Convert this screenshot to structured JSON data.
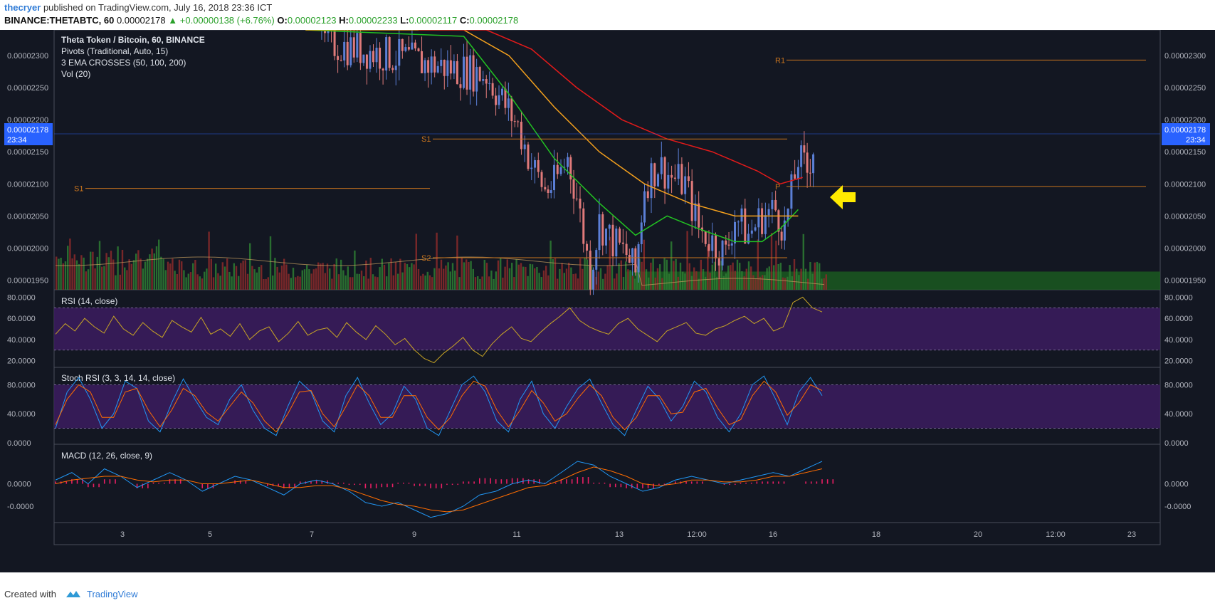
{
  "header": {
    "author": "thecryer",
    "published": "published on TradingView.com, July 16, 2018 23:36 ICT",
    "symbol_line": "BINANCE:THETABTC, 60",
    "last": "0.00002178",
    "change": "+0.00000138 (+6.76%)",
    "o_label": "O:",
    "o": "0.00002123",
    "h_label": "H:",
    "h": "0.00002233",
    "l_label": "L:",
    "l": "0.00002117",
    "c_label": "C:",
    "c": "0.00002178"
  },
  "legend": {
    "title": "Theta Token / Bitcoin, 60, BINANCE",
    "pivots": "Pivots (Traditional, Auto, 15)",
    "ema": "3 EMA CROSSES (50, 100, 200)",
    "vol": "Vol (20)"
  },
  "panes": {
    "rsi_label": "RSI (14, close)",
    "stoch_label": "Stoch RSI (3, 3, 14, 14, close)",
    "macd_label": "MACD (12, 26, close, 9)"
  },
  "price_badge": {
    "value": "0.00002178",
    "time": "23:34"
  },
  "footer": {
    "created": "Created with",
    "brand": "TradingView"
  },
  "colors": {
    "background": "#131722",
    "ema50": "#22c322",
    "ema100": "#f5a11d",
    "ema200": "#e31a1a",
    "pivot": "#c8741e",
    "rsi": "#c9a625",
    "band": "#3a1c5c",
    "macd": "#2196f3",
    "signal": "#ff6d00",
    "hist": "#e91e63",
    "arrow": "#ffeb00"
  },
  "chart_data": [
    {
      "type": "candlestick",
      "title": "Theta Token / Bitcoin, 60, BINANCE",
      "y_ticks": [
        "0.00002300",
        "0.00002250",
        "0.00002200",
        "0.00002150",
        "0.00002100",
        "0.00002050",
        "0.00002000",
        "0.00001950"
      ],
      "x_ticks": [
        "3",
        "5",
        "7",
        "9",
        "11",
        "13",
        "12:00",
        "16",
        "18",
        "20",
        "12:00",
        "23"
      ],
      "ylim": [
        1.935e-05,
        2.34e-05
      ],
      "pivot_levels": [
        {
          "label": "R1",
          "value": 2.293e-05
        },
        {
          "label": "S1",
          "value": 2.17e-05
        },
        {
          "label": "P",
          "value": 2.096e-05
        },
        {
          "label": "S2",
          "value": 1.985e-05
        },
        {
          "label": "S1",
          "value": 2.093e-05
        }
      ],
      "close_path": [
        [
          0,
          2.34e-05
        ],
        [
          6,
          2.32e-05
        ],
        [
          8,
          2.29e-05
        ],
        [
          9.5,
          2.27e-05
        ],
        [
          10.2,
          2.19e-05
        ],
        [
          10.5,
          2.13e-05
        ],
        [
          10.8,
          2.09e-05
        ],
        [
          11,
          2.1e-05
        ],
        [
          11.3,
          2.14e-05
        ],
        [
          11.5,
          2.08e-05
        ],
        [
          11.8,
          1.96e-05
        ],
        [
          12,
          2.04e-05
        ],
        [
          12.3,
          2.01e-05
        ],
        [
          12.6,
          1.99e-05
        ],
        [
          12.8,
          1.96e-05
        ],
        [
          13,
          2.1e-05
        ],
        [
          13.3,
          2.13e-05
        ],
        [
          13.6,
          2.11e-05
        ],
        [
          13.9,
          2.1e-05
        ],
        [
          14.2,
          2.03e-05
        ],
        [
          14.5,
          2.01e-05
        ],
        [
          14.8,
          1.99e-05
        ],
        [
          15,
          2.05e-05
        ],
        [
          15.3,
          2.02e-05
        ],
        [
          15.6,
          2.05e-05
        ],
        [
          15.9,
          2.06e-05
        ],
        [
          16.1,
          2.03e-05
        ],
        [
          16.4,
          2.14e-05
        ],
        [
          16.6,
          2.12e-05
        ],
        [
          16.8,
          2.178e-05
        ]
      ],
      "ema50": [
        [
          5.5,
          2.38e-05
        ],
        [
          9,
          2.33e-05
        ],
        [
          10,
          2.24e-05
        ],
        [
          11,
          2.14e-05
        ],
        [
          12,
          2.07e-05
        ],
        [
          12.8,
          2.02e-05
        ],
        [
          13.5,
          2.05e-05
        ],
        [
          14.2,
          2.03e-05
        ],
        [
          15,
          2.01e-05
        ],
        [
          15.6,
          2.01e-05
        ],
        [
          16,
          2.03e-05
        ],
        [
          16.4,
          2.06e-05
        ]
      ],
      "ema100": [
        [
          5.5,
          2.4e-05
        ],
        [
          9,
          2.36e-05
        ],
        [
          10,
          2.3e-05
        ],
        [
          11,
          2.22e-05
        ],
        [
          12,
          2.15e-05
        ],
        [
          13,
          2.1e-05
        ],
        [
          14,
          2.07e-05
        ],
        [
          15,
          2.05e-05
        ],
        [
          16,
          2.05e-05
        ],
        [
          16.4,
          2.05e-05
        ]
      ],
      "ema200": [
        [
          8,
          2.4e-05
        ],
        [
          9.5,
          2.36e-05
        ],
        [
          10.5,
          2.31e-05
        ],
        [
          11.5,
          2.25e-05
        ],
        [
          12.5,
          2.2e-05
        ],
        [
          13.5,
          2.17e-05
        ],
        [
          14.5,
          2.15e-05
        ],
        [
          15.5,
          2.12e-05
        ],
        [
          16,
          2.1e-05
        ],
        [
          16.5,
          2.11e-05
        ]
      ],
      "volume_zone": [
        1.98e-05,
        1.94e-05
      ],
      "last_price": 2.178e-05
    },
    {
      "type": "line",
      "title": "RSI (14, close)",
      "y_ticks": [
        "80.0000",
        "60.0000",
        "40.0000",
        "20.0000"
      ],
      "ylim": [
        15,
        85
      ],
      "bands": [
        30,
        70
      ],
      "values": [
        45,
        55,
        48,
        60,
        52,
        46,
        62,
        50,
        44,
        56,
        48,
        42,
        58,
        52,
        47,
        61,
        45,
        50,
        43,
        55,
        40,
        48,
        52,
        38,
        46,
        57,
        44,
        49,
        51,
        42,
        56,
        47,
        40,
        53,
        45,
        35,
        41,
        30,
        22,
        18,
        27,
        34,
        42,
        30,
        24,
        36,
        45,
        52,
        41,
        38,
        47,
        55,
        62,
        70,
        58,
        52,
        48,
        45,
        55,
        60,
        50,
        44,
        38,
        48,
        52,
        56,
        46,
        44,
        50,
        53,
        58,
        62,
        55,
        60,
        48,
        52,
        75,
        80,
        70,
        66
      ]
    },
    {
      "type": "line",
      "title": "Stoch RSI (3, 3, 14, 14, close)",
      "y_ticks": [
        "80.0000",
        "40.0000",
        "0.0000"
      ],
      "ylim": [
        0,
        100
      ],
      "bands": [
        20,
        80
      ],
      "k": [
        20,
        70,
        90,
        60,
        20,
        40,
        85,
        75,
        30,
        15,
        55,
        88,
        60,
        35,
        25,
        60,
        80,
        45,
        20,
        10,
        50,
        85,
        70,
        30,
        15,
        65,
        90,
        55,
        25,
        40,
        78,
        60,
        20,
        10,
        45,
        80,
        92,
        70,
        30,
        15,
        60,
        85,
        40,
        20,
        50,
        75,
        88,
        55,
        25,
        10,
        45,
        78,
        60,
        30,
        50,
        85,
        70,
        35,
        15,
        40,
        80,
        92,
        60,
        25,
        70,
        90,
        65
      ],
      "d": [
        25,
        60,
        80,
        70,
        35,
        35,
        70,
        75,
        45,
        22,
        45,
        75,
        65,
        42,
        30,
        50,
        70,
        55,
        30,
        15,
        40,
        70,
        72,
        40,
        22,
        50,
        80,
        65,
        35,
        35,
        65,
        65,
        35,
        18,
        35,
        65,
        85,
        78,
        45,
        22,
        45,
        72,
        55,
        30,
        40,
        62,
        80,
        65,
        35,
        18,
        35,
        65,
        65,
        40,
        42,
        70,
        75,
        48,
        25,
        32,
        65,
        85,
        70,
        38,
        55,
        80,
        72
      ]
    },
    {
      "type": "line",
      "title": "MACD (12, 26, close, 9)",
      "y_ticks": [
        "0.0000",
        "-0.0000"
      ],
      "ylim": [
        -1,
        1
      ],
      "macd": [
        0.1,
        0.3,
        0.0,
        0.4,
        0.2,
        -0.1,
        0.1,
        0.3,
        0.1,
        -0.2,
        0.0,
        0.2,
        0.1,
        -0.1,
        -0.3,
        0.0,
        0.1,
        0.0,
        -0.2,
        -0.5,
        -0.6,
        -0.5,
        -0.7,
        -0.9,
        -0.8,
        -0.6,
        -0.3,
        -0.2,
        0.0,
        0.1,
        0.0,
        0.3,
        0.6,
        0.5,
        0.2,
        0.0,
        -0.2,
        -0.1,
        0.1,
        0.2,
        0.1,
        0.0,
        0.1,
        0.2,
        0.3,
        0.2,
        0.4,
        0.6
      ],
      "signal": [
        0.0,
        0.1,
        0.15,
        0.2,
        0.2,
        0.1,
        0.05,
        0.1,
        0.1,
        0.0,
        0.0,
        0.05,
        0.1,
        0.0,
        -0.1,
        -0.1,
        -0.05,
        -0.05,
        -0.15,
        -0.3,
        -0.45,
        -0.55,
        -0.6,
        -0.7,
        -0.75,
        -0.7,
        -0.55,
        -0.4,
        -0.25,
        -0.1,
        -0.05,
        0.1,
        0.3,
        0.45,
        0.35,
        0.2,
        0.0,
        -0.05,
        0.0,
        0.1,
        0.1,
        0.05,
        0.05,
        0.1,
        0.2,
        0.2,
        0.3,
        0.4
      ]
    }
  ]
}
